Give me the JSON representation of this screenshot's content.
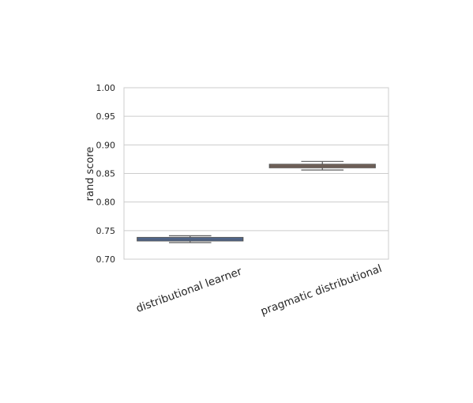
{
  "chart_data": {
    "type": "box",
    "title": "",
    "xlabel": "",
    "ylabel": "rand score",
    "ylim": [
      0.7,
      1.0
    ],
    "yticks": [
      "0.70",
      "0.75",
      "0.80",
      "0.85",
      "0.90",
      "0.95",
      "1.00"
    ],
    "grid": "y",
    "categories": [
      "distributional learner",
      "pragmatic distributional"
    ],
    "boxes": [
      {
        "category": "distributional learner",
        "min": 0.729,
        "q1": 0.732,
        "median": 0.735,
        "q3": 0.738,
        "max": 0.741,
        "color": "#4c72b0"
      },
      {
        "category": "pragmatic distributional",
        "min": 0.856,
        "q1": 0.86,
        "median": 0.863,
        "q3": 0.866,
        "max": 0.871,
        "color": "#8c6d5a"
      }
    ]
  }
}
